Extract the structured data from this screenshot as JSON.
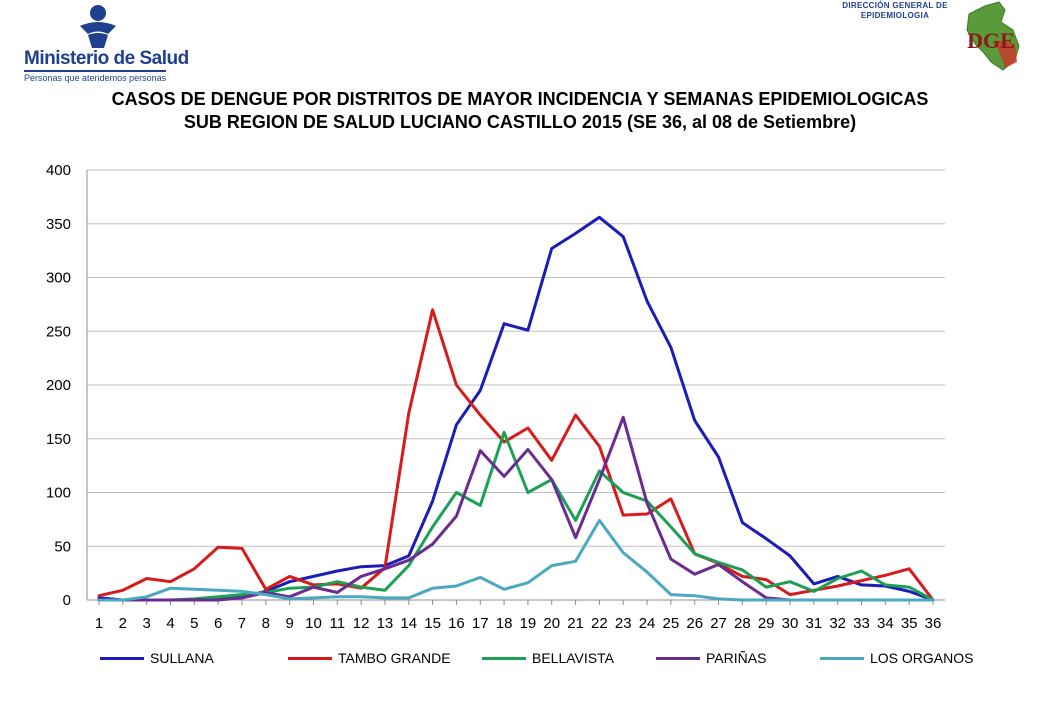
{
  "header": {
    "ministry_name": "Ministerio de Salud",
    "ministry_tagline": "Personas que atendemos personas",
    "dge_line1": "DIRECCIÓN GENERAL DE",
    "dge_line2": "EPIDEMIOLOGIA",
    "dge_letters": "DGE"
  },
  "colors": {
    "brand_blue": "#1f3f8f",
    "SULLANA": "#1c1cb8",
    "TAMBO GRANDE": "#d71a1a",
    "BELLAVISTA": "#1aa154",
    "PARIÑAS": "#6a2c91",
    "LOS ORGANOS": "#4aa8c0"
  },
  "chart_data": {
    "type": "line",
    "title": "CASOS DE DENGUE POR DISTRITOS DE MAYOR INCIDENCIA Y SEMANAS EPIDEMIOLOGICAS",
    "subtitle": "SUB REGION DE SALUD LUCIANO CASTILLO 2015 (SE 36, al 08 de Setiembre)",
    "xlabel": "",
    "ylabel": "",
    "x": [
      1,
      2,
      3,
      4,
      5,
      6,
      7,
      8,
      9,
      10,
      11,
      12,
      13,
      14,
      15,
      16,
      17,
      18,
      19,
      20,
      21,
      22,
      23,
      24,
      25,
      26,
      27,
      28,
      29,
      30,
      31,
      32,
      33,
      34,
      35,
      36
    ],
    "ylim": [
      0,
      400
    ],
    "yticks": [
      0,
      50,
      100,
      150,
      200,
      250,
      300,
      350,
      400
    ],
    "grid": "horizontal",
    "legend_position": "bottom",
    "series": [
      {
        "name": "SULLANA",
        "values": [
          2,
          0,
          0,
          0,
          0,
          1,
          3,
          8,
          17,
          22,
          27,
          31,
          32,
          41,
          92,
          163,
          195,
          257,
          251,
          327,
          341,
          356,
          338,
          278,
          235,
          167,
          133,
          72,
          57,
          41,
          15,
          22,
          14,
          13,
          8,
          0
        ]
      },
      {
        "name": "TAMBO GRANDE",
        "values": [
          4,
          9,
          20,
          17,
          29,
          49,
          48,
          10,
          22,
          14,
          15,
          11,
          30,
          174,
          270,
          200,
          172,
          147,
          160,
          130,
          172,
          143,
          79,
          80,
          94,
          43,
          34,
          22,
          19,
          5,
          9,
          13,
          18,
          23,
          29,
          0
        ]
      },
      {
        "name": "BELLAVISTA",
        "values": [
          0,
          0,
          0,
          0,
          1,
          3,
          5,
          7,
          11,
          12,
          17,
          12,
          9,
          32,
          68,
          100,
          88,
          156,
          100,
          112,
          74,
          120,
          100,
          92,
          68,
          43,
          35,
          28,
          12,
          17,
          8,
          20,
          27,
          14,
          12,
          0
        ]
      },
      {
        "name": "PARIÑAS",
        "values": [
          0,
          0,
          0,
          0,
          0,
          0,
          2,
          7,
          3,
          12,
          7,
          22,
          29,
          37,
          52,
          78,
          139,
          115,
          140,
          112,
          58,
          112,
          170,
          90,
          38,
          24,
          33,
          17,
          2,
          0,
          0,
          0,
          0,
          0,
          0,
          0
        ]
      },
      {
        "name": "LOS ORGANOS",
        "values": [
          0,
          0,
          3,
          11,
          10,
          9,
          8,
          5,
          1,
          2,
          3,
          3,
          2,
          2,
          11,
          13,
          21,
          10,
          16,
          32,
          36,
          74,
          44,
          26,
          5,
          4,
          1,
          0,
          0,
          0,
          0,
          0,
          0,
          0,
          0,
          0
        ]
      }
    ]
  }
}
